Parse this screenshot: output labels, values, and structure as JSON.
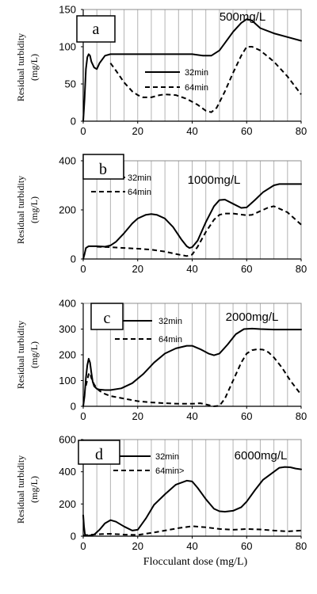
{
  "chart_data": [
    {
      "type": "line",
      "panel_label": "a",
      "annotation": "500mg/L",
      "ylabel_line1": "Residual turbidity",
      "ylabel_line2": "(mg/L)",
      "xlabel": "",
      "xlim": [
        0,
        80
      ],
      "ylim": [
        0,
        150
      ],
      "xticks": [
        "0",
        "20",
        "40",
        "60",
        "80"
      ],
      "yticks": [
        "0",
        "50",
        "100",
        "150"
      ],
      "grid": true,
      "series": [
        {
          "name": "32min",
          "style": "solid",
          "x": [
            0,
            0.5,
            1,
            1.5,
            2,
            2.5,
            3,
            4,
            5,
            6,
            8,
            10,
            14,
            20,
            30,
            40,
            44,
            47,
            50,
            52,
            55,
            58,
            60,
            62,
            65,
            70,
            75,
            80
          ],
          "y": [
            0,
            30,
            70,
            86,
            90,
            88,
            80,
            72,
            70,
            78,
            88,
            90,
            90,
            90,
            90,
            90,
            88,
            88,
            95,
            105,
            120,
            132,
            137,
            135,
            125,
            118,
            113,
            108
          ]
        },
        {
          "name": "64min",
          "style": "dashed",
          "x": [
            10,
            12,
            15,
            18,
            20,
            22,
            25,
            28,
            30,
            34,
            38,
            42,
            45,
            47,
            49,
            52,
            55,
            58,
            60,
            62,
            65,
            70,
            75,
            80
          ],
          "y": [
            78,
            68,
            52,
            40,
            35,
            32,
            32,
            35,
            36,
            35,
            30,
            22,
            14,
            12,
            18,
            40,
            65,
            88,
            100,
            100,
            95,
            80,
            60,
            36
          ]
        }
      ]
    },
    {
      "type": "line",
      "panel_label": "b",
      "annotation": "1000mg/L",
      "ylabel_line1": "Residual turbidity",
      "ylabel_line2": "(mg/L)",
      "xlabel": "",
      "xlim": [
        0,
        80
      ],
      "ylim": [
        0,
        400
      ],
      "xticks": [
        "0",
        "20",
        "40",
        "60",
        "80"
      ],
      "yticks": [
        "0",
        "200",
        "400"
      ],
      "grid": true,
      "series": [
        {
          "name": "32min",
          "style": "solid",
          "x": [
            0,
            0.5,
            1,
            2,
            3,
            5,
            8,
            10,
            12,
            15,
            18,
            20,
            23,
            25,
            27,
            30,
            33,
            36,
            38,
            39,
            40,
            42,
            45,
            48,
            50,
            52,
            55,
            58,
            60,
            63,
            66,
            70,
            72,
            75,
            80
          ],
          "y": [
            0,
            20,
            45,
            52,
            52,
            52,
            50,
            55,
            70,
            105,
            145,
            165,
            180,
            183,
            180,
            165,
            130,
            80,
            52,
            45,
            48,
            75,
            150,
            215,
            240,
            242,
            225,
            208,
            210,
            240,
            272,
            300,
            305,
            305,
            305
          ]
        },
        {
          "name": "64min",
          "style": "dashed",
          "x": [
            5,
            10,
            15,
            20,
            25,
            30,
            35,
            38,
            40,
            42,
            45,
            48,
            50,
            52,
            55,
            60,
            62,
            65,
            68,
            70,
            72,
            75,
            80
          ],
          "y": [
            50,
            48,
            45,
            42,
            38,
            30,
            18,
            12,
            18,
            50,
            110,
            160,
            180,
            185,
            185,
            178,
            180,
            195,
            210,
            215,
            205,
            190,
            140
          ]
        }
      ]
    },
    {
      "type": "line",
      "panel_label": "c",
      "annotation": "2000mg/L",
      "ylabel_line1": "Residual turbidity",
      "ylabel_line2": "(mg/L)",
      "xlabel": "",
      "xlim": [
        0,
        80
      ],
      "ylim": [
        0,
        400
      ],
      "xticks": [
        "0",
        "20",
        "40",
        "60",
        "80"
      ],
      "yticks": [
        "0",
        "100",
        "200",
        "300",
        "400"
      ],
      "grid": true,
      "series": [
        {
          "name": "32min",
          "style": "solid",
          "x": [
            0,
            0.5,
            1,
            1.5,
            2,
            2.5,
            3,
            3.5,
            4,
            5,
            6,
            8,
            10,
            14,
            18,
            22,
            26,
            30,
            34,
            38,
            40,
            43,
            46,
            48,
            50,
            53,
            56,
            59,
            62,
            65,
            70,
            75,
            80
          ],
          "y": [
            0,
            40,
            110,
            160,
            185,
            170,
            130,
            95,
            78,
            68,
            65,
            63,
            63,
            70,
            90,
            125,
            170,
            205,
            225,
            235,
            235,
            222,
            205,
            198,
            205,
            240,
            280,
            300,
            302,
            300,
            298,
            298,
            298
          ]
        },
        {
          "name": "64min",
          "style": "dashed",
          "x": [
            1,
            2,
            2.5,
            3,
            4,
            5,
            6,
            8,
            10,
            15,
            20,
            25,
            30,
            35,
            40,
            43,
            46,
            48,
            50,
            52,
            55,
            58,
            60,
            62,
            64,
            66,
            68,
            70,
            73,
            76,
            80
          ],
          "y": [
            80,
            125,
            130,
            110,
            85,
            70,
            60,
            48,
            40,
            30,
            20,
            15,
            12,
            10,
            10,
            12,
            5,
            0,
            2,
            30,
            100,
            170,
            205,
            218,
            222,
            220,
            210,
            190,
            150,
            100,
            45
          ]
        }
      ]
    },
    {
      "type": "line",
      "panel_label": "d",
      "annotation": "6000mg/L",
      "ylabel_line1": "Residual turbidity",
      "ylabel_line2": "(mg/L)",
      "xlabel": "Flocculant dose (mg/L)",
      "xlim": [
        0,
        80
      ],
      "ylim": [
        0,
        600
      ],
      "xticks": [
        "0",
        "20",
        "40",
        "60",
        "80"
      ],
      "yticks": [
        "0",
        "200",
        "400",
        "600"
      ],
      "grid": true,
      "series": [
        {
          "name": "32min",
          "style": "solid",
          "x": [
            0,
            0.3,
            0.6,
            1,
            2,
            4,
            6,
            8,
            10,
            12,
            15,
            18,
            20,
            23,
            26,
            30,
            34,
            38,
            40,
            42,
            45,
            48,
            50,
            52,
            55,
            58,
            60,
            63,
            66,
            70,
            72,
            74,
            76,
            78,
            80
          ],
          "y": [
            130,
            60,
            15,
            5,
            3,
            10,
            40,
            80,
            100,
            90,
            60,
            35,
            40,
            110,
            195,
            260,
            320,
            345,
            340,
            300,
            230,
            170,
            155,
            152,
            158,
            180,
            215,
            285,
            350,
            400,
            425,
            430,
            428,
            420,
            415
          ]
        },
        {
          "name": "64min>",
          "style": "dashed",
          "x": [
            0,
            2,
            5,
            10,
            15,
            20,
            25,
            30,
            35,
            40,
            45,
            50,
            55,
            60,
            65,
            70,
            75,
            80
          ],
          "y": [
            5,
            8,
            12,
            15,
            10,
            8,
            20,
            35,
            50,
            62,
            55,
            45,
            40,
            45,
            42,
            35,
            30,
            35
          ]
        }
      ]
    }
  ]
}
